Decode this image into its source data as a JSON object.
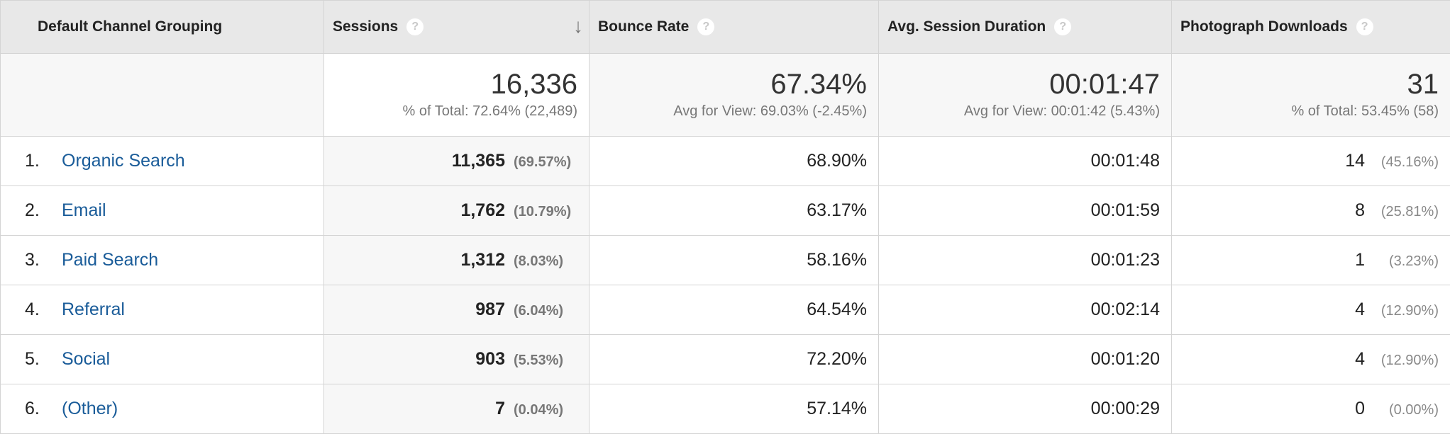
{
  "headers": {
    "channel": "Default Channel Grouping",
    "sessions": "Sessions",
    "bounce": "Bounce Rate",
    "duration": "Avg. Session Duration",
    "downloads": "Photograph Downloads",
    "help_glyph": "?",
    "sort_glyph": "↓"
  },
  "totals": {
    "sessions": {
      "value": "16,336",
      "sub": "% of Total: 72.64% (22,489)"
    },
    "bounce": {
      "value": "67.34%",
      "sub": "Avg for View: 69.03% (-2.45%)"
    },
    "duration": {
      "value": "00:01:47",
      "sub": "Avg for View: 00:01:42 (5.43%)"
    },
    "downloads": {
      "value": "31",
      "sub": "% of Total: 53.45% (58)"
    }
  },
  "rows": [
    {
      "index": "1.",
      "channel": "Organic Search",
      "sessions": "11,365",
      "sessions_pct": "(69.57%)",
      "bounce": "68.90%",
      "duration": "00:01:48",
      "downloads": "14",
      "downloads_pct": "(45.16%)"
    },
    {
      "index": "2.",
      "channel": "Email",
      "sessions": "1,762",
      "sessions_pct": "(10.79%)",
      "bounce": "63.17%",
      "duration": "00:01:59",
      "downloads": "8",
      "downloads_pct": "(25.81%)"
    },
    {
      "index": "3.",
      "channel": "Paid Search",
      "sessions": "1,312",
      "sessions_pct": "(8.03%)",
      "bounce": "58.16%",
      "duration": "00:01:23",
      "downloads": "1",
      "downloads_pct": "(3.23%)"
    },
    {
      "index": "4.",
      "channel": "Referral",
      "sessions": "987",
      "sessions_pct": "(6.04%)",
      "bounce": "64.54%",
      "duration": "00:02:14",
      "downloads": "4",
      "downloads_pct": "(12.90%)"
    },
    {
      "index": "5.",
      "channel": "Social",
      "sessions": "903",
      "sessions_pct": "(5.53%)",
      "bounce": "72.20%",
      "duration": "00:01:20",
      "downloads": "4",
      "downloads_pct": "(12.90%)"
    },
    {
      "index": "6.",
      "channel": "(Other)",
      "sessions": "7",
      "sessions_pct": "(0.04%)",
      "bounce": "57.14%",
      "duration": "00:00:29",
      "downloads": "0",
      "downloads_pct": "(0.00%)"
    }
  ],
  "colors": {
    "link": "#1a5c99",
    "header_bg": "#e8e8e8",
    "muted": "#777777"
  },
  "icons": {
    "help": "help-circle-icon",
    "sort": "sort-descending-arrow-icon"
  }
}
